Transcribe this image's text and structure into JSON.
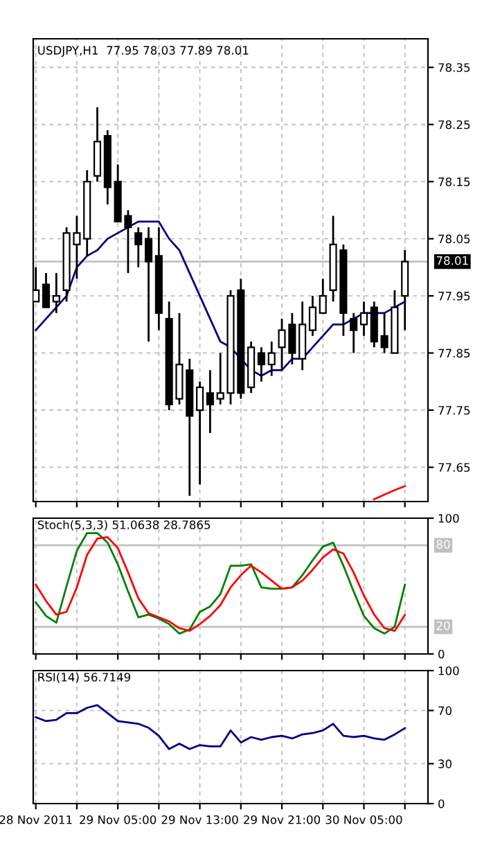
{
  "chart_data": [
    {
      "type": "candlestick",
      "title": "USDJPY,H1  77.95 78.03 77.89 78.01",
      "categories": [
        null,
        null,
        null,
        null,
        null,
        null,
        null,
        null,
        null,
        null,
        null,
        null,
        null,
        null,
        null,
        null,
        null,
        null,
        null,
        null,
        null,
        null,
        null,
        null,
        null,
        null,
        null,
        null,
        null,
        null,
        null,
        null,
        null,
        null,
        null,
        null,
        null
      ],
      "ohlc": [
        [
          77.94,
          78.0,
          77.94,
          77.96
        ],
        [
          77.97,
          77.99,
          77.93,
          77.93
        ],
        [
          77.94,
          77.99,
          77.92,
          77.95
        ],
        [
          77.96,
          78.07,
          77.94,
          78.06
        ],
        [
          78.04,
          78.09,
          77.98,
          78.06
        ],
        [
          78.05,
          78.17,
          78.02,
          78.15
        ],
        [
          78.16,
          78.28,
          78.15,
          78.22
        ],
        [
          78.23,
          78.24,
          78.11,
          78.14
        ],
        [
          78.15,
          78.18,
          78.08,
          78.08
        ],
        [
          78.09,
          78.1,
          77.99,
          78.07
        ],
        [
          78.06,
          78.07,
          78.0,
          78.04
        ],
        [
          78.05,
          78.07,
          77.87,
          78.01
        ],
        [
          78.02,
          78.07,
          77.89,
          77.92
        ],
        [
          77.91,
          77.94,
          77.75,
          77.76
        ],
        [
          77.77,
          77.92,
          77.76,
          77.83
        ],
        [
          77.82,
          77.84,
          77.6,
          77.74
        ],
        [
          77.75,
          77.8,
          77.62,
          77.79
        ],
        [
          77.78,
          77.82,
          77.71,
          77.76
        ],
        [
          77.77,
          77.85,
          77.76,
          77.78
        ],
        [
          77.78,
          77.96,
          77.76,
          77.95
        ],
        [
          77.96,
          77.98,
          77.77,
          77.78
        ],
        [
          77.79,
          77.87,
          77.78,
          77.86
        ],
        [
          77.85,
          77.86,
          77.8,
          77.83
        ],
        [
          77.83,
          77.87,
          77.81,
          77.85
        ],
        [
          77.86,
          77.91,
          77.82,
          77.89
        ],
        [
          77.9,
          77.92,
          77.83,
          77.85
        ],
        [
          77.84,
          77.94,
          77.82,
          77.9
        ],
        [
          77.89,
          77.95,
          77.88,
          77.93
        ],
        [
          77.92,
          77.98,
          77.92,
          77.95
        ],
        [
          77.96,
          78.09,
          77.94,
          78.04
        ],
        [
          78.03,
          78.04,
          77.88,
          77.92
        ],
        [
          77.91,
          77.92,
          77.85,
          77.89
        ],
        [
          77.9,
          77.94,
          77.88,
          77.92
        ],
        [
          77.93,
          77.94,
          77.86,
          77.87
        ],
        [
          77.88,
          77.92,
          77.85,
          77.86
        ],
        [
          77.85,
          77.96,
          77.85,
          77.93
        ],
        [
          77.95,
          78.03,
          77.89,
          78.01
        ]
      ],
      "series": [
        {
          "type": "line",
          "color": "#000080",
          "values": [
            77.89,
            77.91,
            77.93,
            77.95,
            78.0,
            78.02,
            78.03,
            78.05,
            78.06,
            78.07,
            78.08,
            78.08,
            78.08,
            78.05,
            78.03,
            77.99,
            77.95,
            77.91,
            77.87,
            77.86,
            77.84,
            77.82,
            77.81,
            77.82,
            77.82,
            77.84,
            77.84,
            77.86,
            77.88,
            77.9,
            77.9,
            77.91,
            77.92,
            77.92,
            77.92,
            77.93,
            77.94
          ]
        },
        {
          "type": "line",
          "color": "#ff0000",
          "values": [
            null,
            null,
            null,
            null,
            null,
            null,
            null,
            null,
            null,
            null,
            null,
            null,
            null,
            null,
            null,
            null,
            null,
            null,
            null,
            null,
            null,
            null,
            null,
            null,
            null,
            null,
            null,
            null,
            null,
            null,
            null,
            null,
            null,
            77.594,
            77.602,
            77.61,
            77.617
          ]
        }
      ],
      "ylim": [
        77.59,
        78.4
      ],
      "yticks": [
        77.65,
        77.75,
        77.85,
        77.95,
        78.05,
        78.15,
        78.25,
        78.35
      ],
      "grid": true,
      "tick_labels": "y",
      "ref_lines": [
        {
          "axis": "y",
          "value": 78.01,
          "label": "78.01",
          "color": "#c0c0c0"
        }
      ]
    },
    {
      "type": "line",
      "title": "Stoch(5,3,3) 51.0638 28.7865",
      "categories": [
        null,
        null,
        null,
        null,
        null,
        null,
        null,
        null,
        null,
        null,
        null,
        null,
        null,
        null,
        null,
        null,
        null,
        null,
        null,
        null,
        null,
        null,
        null,
        null,
        null,
        null,
        null,
        null,
        null,
        null,
        null,
        null,
        null,
        null,
        null,
        null,
        null
      ],
      "series": [
        {
          "color": "#008000",
          "values": [
            38,
            28,
            23,
            50,
            76,
            89,
            89,
            82,
            66,
            46,
            27,
            29,
            26,
            22,
            15,
            18,
            31,
            35,
            44,
            65,
            65,
            66,
            49,
            48,
            48,
            49,
            58,
            69,
            79,
            82,
            65,
            46,
            28,
            19,
            15,
            20,
            51.06
          ]
        },
        {
          "color": "#ff0000",
          "values": [
            51,
            39,
            29,
            31,
            49,
            73,
            85,
            86,
            78,
            60,
            41,
            30,
            27,
            24,
            19,
            17,
            22,
            28,
            36,
            49,
            58,
            65,
            60,
            54,
            48,
            49,
            54,
            62,
            71,
            77,
            74,
            60,
            43,
            29,
            19,
            17,
            28.79
          ]
        }
      ],
      "ylim": [
        0,
        100
      ],
      "yticks": [
        0,
        100
      ],
      "grid": "x",
      "tick_labels": "y",
      "ref_lines": [
        {
          "axis": "y",
          "value": 80,
          "label": "80",
          "color": "#c0c0c0"
        },
        {
          "axis": "y",
          "value": 20,
          "label": "20",
          "color": "#c0c0c0"
        }
      ]
    },
    {
      "type": "line",
      "title": "RSI(14) 56.7149",
      "categories": [
        "28 Nov 2011",
        null,
        null,
        null,
        null,
        null,
        null,
        null,
        "29 Nov 05:00",
        null,
        null,
        null,
        null,
        null,
        null,
        null,
        "29 Nov 13:00",
        null,
        null,
        null,
        null,
        null,
        null,
        null,
        "29 Nov 21:00",
        null,
        null,
        null,
        null,
        null,
        null,
        null,
        "30 Nov 05:00",
        null,
        null,
        null,
        null
      ],
      "series": [
        {
          "color": "#000080",
          "values": [
            65,
            62,
            63,
            68,
            68,
            72,
            74,
            68,
            62,
            61,
            60,
            57,
            51,
            41,
            45,
            41,
            44,
            43,
            43,
            55,
            46,
            50,
            48,
            50,
            51,
            49,
            52,
            53,
            55,
            60,
            51,
            50,
            51,
            49,
            48,
            52,
            56.71
          ]
        }
      ],
      "ylim": [
        0,
        100
      ],
      "yticks": [
        0,
        30,
        70,
        100
      ],
      "grid": true
    }
  ]
}
